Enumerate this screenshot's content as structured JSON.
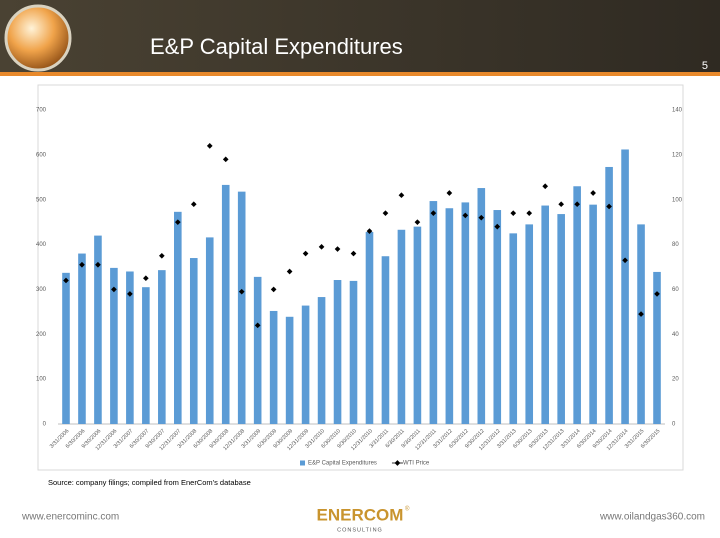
{
  "header": {
    "title": "E&P Capital Expenditures",
    "page_number": "5"
  },
  "chart_data": {
    "type": "bar",
    "categories": [
      "3/31/2006",
      "6/30/2006",
      "9/30/2006",
      "12/31/2006",
      "3/31/2007",
      "6/30/2007",
      "9/30/2007",
      "12/31/2007",
      "3/31/2008",
      "6/30/2008",
      "9/30/2008",
      "12/31/2008",
      "3/31/2009",
      "6/30/2009",
      "9/30/2009",
      "12/31/2009",
      "3/31/2010",
      "6/30/2010",
      "9/30/2010",
      "12/31/2010",
      "3/31/2011",
      "6/30/2011",
      "9/30/2011",
      "12/31/2011",
      "3/31/2012",
      "6/30/2012",
      "9/30/2012",
      "12/31/2012",
      "3/31/2013",
      "6/30/2013",
      "9/30/2013",
      "12/31/2013",
      "3/31/2014",
      "6/30/2014",
      "9/30/2014",
      "12/31/2014",
      "3/31/2015",
      "6/30/2015"
    ],
    "series": [
      {
        "name": "E&P Capital Expenditures",
        "type": "bar",
        "color": "#5b9bd5",
        "values": [
          337,
          380,
          420,
          348,
          340,
          305,
          343,
          473,
          370,
          416,
          533,
          518,
          328,
          252,
          239,
          264,
          283,
          321,
          319,
          428,
          374,
          433,
          440,
          497,
          481,
          494,
          526,
          477,
          425,
          445,
          487,
          468,
          530,
          489,
          573,
          612,
          445,
          339
        ]
      },
      {
        "name": "WTI Price",
        "type": "scatter",
        "axis": "y2",
        "color": "#000000",
        "values": [
          64,
          71,
          71,
          60,
          58,
          65,
          75,
          90,
          98,
          124,
          118,
          59,
          44,
          60,
          68,
          76,
          79,
          78,
          76,
          86,
          94,
          102,
          90,
          94,
          103,
          93,
          92,
          88,
          94,
          94,
          106,
          98,
          98,
          103,
          97,
          73,
          49,
          58
        ]
      }
    ],
    "ylim": [
      0,
      700
    ],
    "yticks": [
      0,
      100,
      200,
      300,
      400,
      500,
      600,
      700
    ],
    "y2lim": [
      0,
      140
    ],
    "y2ticks": [
      0,
      20,
      40,
      60,
      80,
      100,
      120,
      140
    ],
    "grid": false,
    "legend": "bottom"
  },
  "source": "Source: company filings; compiled from EnerCom's database",
  "footer": {
    "left": "www.enercominc.com",
    "logo": "ENERCOM",
    "logo_mark": "®",
    "logo_sub": "CONSULTING",
    "right": "www.oilandgas360.com"
  }
}
